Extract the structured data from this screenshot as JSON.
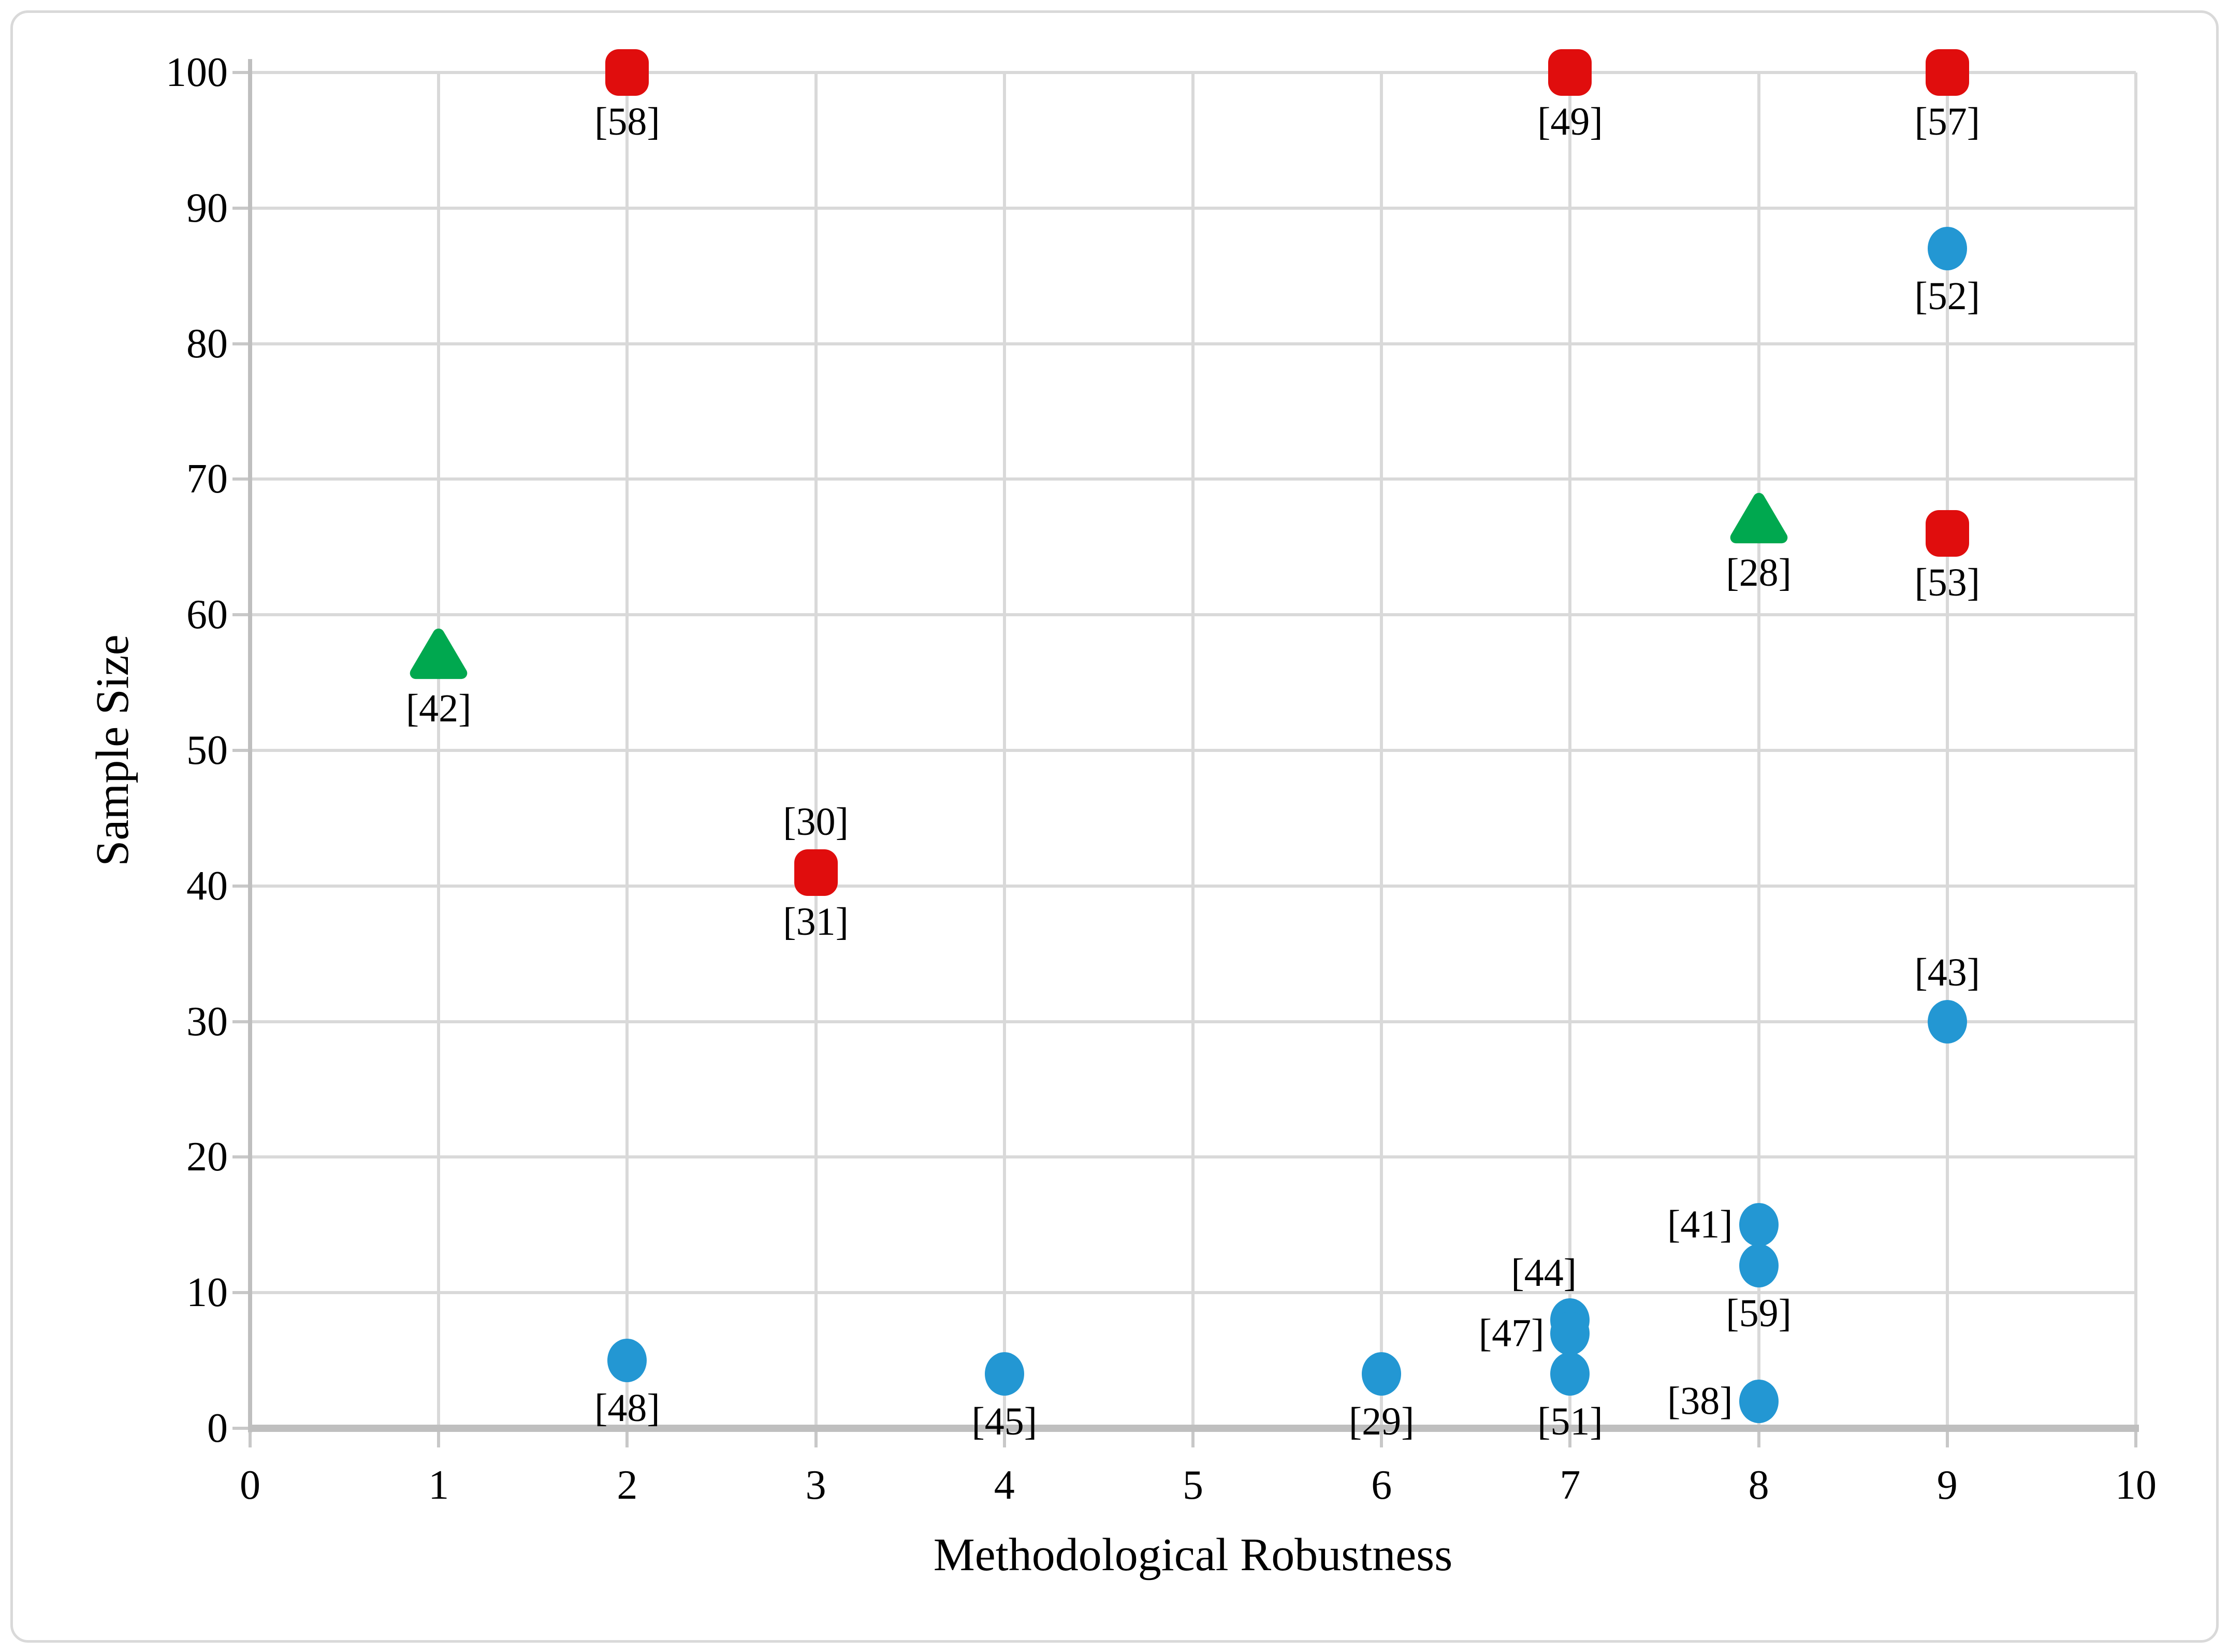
{
  "chart_data": {
    "type": "scatter",
    "title": "",
    "xlabel": "Methodological Robustness",
    "ylabel": "Sample Size",
    "xlim": [
      0,
      10
    ],
    "ylim": [
      0,
      100
    ],
    "xticks": [
      0,
      1,
      2,
      3,
      4,
      5,
      6,
      7,
      8,
      9,
      10
    ],
    "yticks": [
      0,
      10,
      20,
      30,
      40,
      50,
      60,
      70,
      80,
      90,
      100
    ],
    "grid": true,
    "legend": false,
    "colors": {
      "square_series": "#E00D0D",
      "triangle_series": "#00A84F",
      "circle_series": "#2397D3",
      "gridline": "#D9D9D9",
      "axis_line": "#BFBFBF",
      "chart_border": "#D9D9D9",
      "text": "#000000"
    },
    "series": [
      {
        "name": "red-squares",
        "marker": "square",
        "color": "#E00D0D",
        "points": [
          {
            "x": 2,
            "y": 100,
            "labels": [
              {
                "text": "[58]",
                "pos": "below"
              }
            ]
          },
          {
            "x": 7,
            "y": 100,
            "labels": [
              {
                "text": "[49]",
                "pos": "below"
              }
            ]
          },
          {
            "x": 9,
            "y": 100,
            "labels": [
              {
                "text": "[57]",
                "pos": "below"
              }
            ]
          },
          {
            "x": 9,
            "y": 66,
            "labels": [
              {
                "text": "[53]",
                "pos": "below"
              }
            ]
          },
          {
            "x": 3,
            "y": 41,
            "labels": [
              {
                "text": "[30]",
                "pos": "above"
              },
              {
                "text": "[31]",
                "pos": "below"
              }
            ]
          }
        ]
      },
      {
        "name": "green-triangles",
        "marker": "triangle",
        "color": "#00A84F",
        "points": [
          {
            "x": 1,
            "y": 57,
            "labels": [
              {
                "text": "[42]",
                "pos": "below"
              }
            ]
          },
          {
            "x": 8,
            "y": 67,
            "labels": [
              {
                "text": "[28]",
                "pos": "below"
              }
            ]
          }
        ]
      },
      {
        "name": "blue-circles",
        "marker": "circle",
        "color": "#2397D3",
        "points": [
          {
            "x": 9,
            "y": 87,
            "labels": [
              {
                "text": "[52]",
                "pos": "below"
              }
            ]
          },
          {
            "x": 9,
            "y": 30,
            "labels": [
              {
                "text": "[43]",
                "pos": "above"
              }
            ]
          },
          {
            "x": 8,
            "y": 15,
            "labels": [
              {
                "text": "[41]",
                "pos": "left"
              }
            ]
          },
          {
            "x": 8,
            "y": 12,
            "labels": [
              {
                "text": "[59]",
                "pos": "below"
              }
            ]
          },
          {
            "x": 8,
            "y": 2,
            "labels": [
              {
                "text": "[38]",
                "pos": "left"
              }
            ]
          },
          {
            "x": 7,
            "y": 8,
            "labels": [
              {
                "text": "[44]",
                "pos": "above-left"
              }
            ]
          },
          {
            "x": 7,
            "y": 7,
            "labels": [
              {
                "text": "[47]",
                "pos": "left"
              }
            ]
          },
          {
            "x": 7,
            "y": 4,
            "labels": [
              {
                "text": "[51]",
                "pos": "below"
              }
            ]
          },
          {
            "x": 2,
            "y": 5,
            "labels": [
              {
                "text": "[48]",
                "pos": "below"
              }
            ]
          },
          {
            "x": 4,
            "y": 4,
            "labels": [
              {
                "text": "[45]",
                "pos": "below"
              }
            ]
          },
          {
            "x": 6,
            "y": 4,
            "labels": [
              {
                "text": "[29]",
                "pos": "below"
              }
            ]
          }
        ]
      }
    ]
  }
}
